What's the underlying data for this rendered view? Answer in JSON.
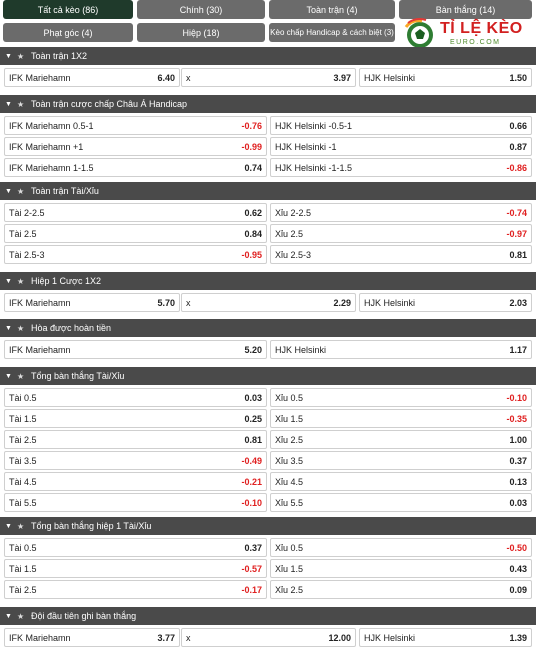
{
  "tabs": [
    {
      "label": "Tất cả kèo (86)",
      "active": true
    },
    {
      "label": "Chính (30)",
      "active": false
    },
    {
      "label": "Toàn trận (4)",
      "active": false
    },
    {
      "label": "Bàn thắng (14)",
      "active": false
    },
    {
      "label": "Phạt góc (4)",
      "active": false
    },
    {
      "label": "Hiệp (18)",
      "active": false
    },
    {
      "label": "Kèo chấp Handicap & cách biệt (3)",
      "active": false
    }
  ],
  "logo": {
    "line1": "TỈ LỆ KÈO",
    "line2": "EURO.COM"
  },
  "colors": {
    "positive": "#222222",
    "negative": "#e02020",
    "header_bg": "#4a4a4a",
    "tab_bg": "#6b6b6b",
    "tab_active_bg": "#1f3a2b"
  },
  "sections": [
    {
      "title": "Toàn trận 1X2",
      "layout": "three",
      "rows": [
        [
          {
            "label": "IFK Mariehamn",
            "value": "6.40"
          },
          {
            "label": "x",
            "value": "3.97"
          },
          {
            "label": "HJK Helsinki",
            "value": "1.50"
          }
        ]
      ]
    },
    {
      "title": "Toàn trận cược chấp Châu Á Handicap",
      "layout": "two",
      "rows": [
        [
          {
            "label": "IFK Mariehamn 0.5-1",
            "value": "-0.76"
          },
          {
            "label": "HJK Helsinki -0.5-1",
            "value": "0.66"
          }
        ],
        [
          {
            "label": "IFK Mariehamn +1",
            "value": "-0.99"
          },
          {
            "label": "HJK Helsinki -1",
            "value": "0.87"
          }
        ],
        [
          {
            "label": "IFK Mariehamn 1-1.5",
            "value": "0.74"
          },
          {
            "label": "HJK Helsinki -1-1.5",
            "value": "-0.86"
          }
        ]
      ]
    },
    {
      "title": "Toàn trận Tài/Xỉu",
      "layout": "two",
      "rows": [
        [
          {
            "label": "Tài 2-2.5",
            "value": "0.62"
          },
          {
            "label": "Xỉu 2-2.5",
            "value": "-0.74"
          }
        ],
        [
          {
            "label": "Tài 2.5",
            "value": "0.84"
          },
          {
            "label": "Xỉu 2.5",
            "value": "-0.97"
          }
        ],
        [
          {
            "label": "Tài 2.5-3",
            "value": "-0.95"
          },
          {
            "label": "Xỉu 2.5-3",
            "value": "0.81"
          }
        ]
      ]
    },
    {
      "title": "Hiệp 1 Cược 1X2",
      "layout": "three",
      "rows": [
        [
          {
            "label": "IFK Mariehamn",
            "value": "5.70"
          },
          {
            "label": "x",
            "value": "2.29"
          },
          {
            "label": "HJK Helsinki",
            "value": "2.03"
          }
        ]
      ]
    },
    {
      "title": "Hòa được hoàn tiền",
      "layout": "two",
      "rows": [
        [
          {
            "label": "IFK Mariehamn",
            "value": "5.20"
          },
          {
            "label": "HJK Helsinki",
            "value": "1.17"
          }
        ]
      ]
    },
    {
      "title": "Tổng bàn thắng Tài/Xỉu",
      "layout": "two",
      "rows": [
        [
          {
            "label": "Tài 0.5",
            "value": "0.03"
          },
          {
            "label": "Xỉu 0.5",
            "value": "-0.10"
          }
        ],
        [
          {
            "label": "Tài 1.5",
            "value": "0.25"
          },
          {
            "label": "Xỉu 1.5",
            "value": "-0.35"
          }
        ],
        [
          {
            "label": "Tài 2.5",
            "value": "0.81"
          },
          {
            "label": "Xỉu 2.5",
            "value": "1.00"
          }
        ],
        [
          {
            "label": "Tài 3.5",
            "value": "-0.49"
          },
          {
            "label": "Xỉu 3.5",
            "value": "0.37"
          }
        ],
        [
          {
            "label": "Tài 4.5",
            "value": "-0.21"
          },
          {
            "label": "Xỉu 4.5",
            "value": "0.13"
          }
        ],
        [
          {
            "label": "Tài 5.5",
            "value": "-0.10"
          },
          {
            "label": "Xỉu 5.5",
            "value": "0.03"
          }
        ]
      ]
    },
    {
      "title": "Tổng bàn thắng hiệp 1 Tài/Xỉu",
      "layout": "two",
      "rows": [
        [
          {
            "label": "Tài 0.5",
            "value": "0.37"
          },
          {
            "label": "Xỉu 0.5",
            "value": "-0.50"
          }
        ],
        [
          {
            "label": "Tài 1.5",
            "value": "-0.57"
          },
          {
            "label": "Xỉu 1.5",
            "value": "0.43"
          }
        ],
        [
          {
            "label": "Tài 2.5",
            "value": "-0.17"
          },
          {
            "label": "Xỉu 2.5",
            "value": "0.09"
          }
        ]
      ]
    },
    {
      "title": "Đội đầu tiên ghi bàn thắng",
      "layout": "three",
      "rows": [
        [
          {
            "label": "IFK Mariehamn",
            "value": "3.77"
          },
          {
            "label": "x",
            "value": "12.00"
          },
          {
            "label": "HJK Helsinki",
            "value": "1.39"
          }
        ]
      ]
    }
  ]
}
